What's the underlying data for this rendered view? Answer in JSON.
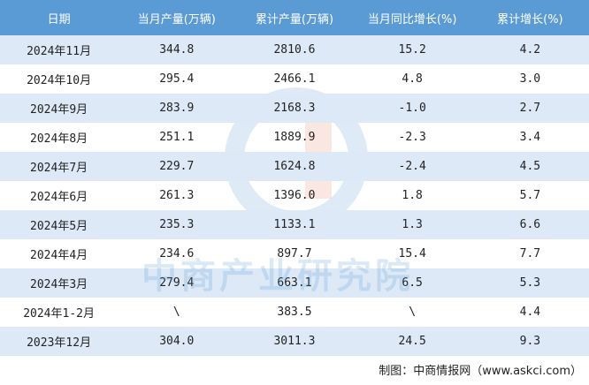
{
  "table": {
    "header": [
      "日期",
      "当月产量(万辆)",
      "累计产量(万辆)",
      "当月同比增长(%)",
      "累计增长(%)"
    ],
    "rows": [
      [
        "2024年11月",
        "344.8",
        "2810.6",
        "15.2",
        "4.2"
      ],
      [
        "2024年10月",
        "295.4",
        "2466.1",
        "4.8",
        "3.0"
      ],
      [
        "2024年9月",
        "283.9",
        "2168.3",
        "-1.0",
        "2.7"
      ],
      [
        "2024年8月",
        "251.1",
        "1889.9",
        "-2.3",
        "3.4"
      ],
      [
        "2024年7月",
        "229.7",
        "1624.8",
        "-2.4",
        "4.5"
      ],
      [
        "2024年6月",
        "261.3",
        "1396.0",
        "1.8",
        "5.7"
      ],
      [
        "2024年5月",
        "235.3",
        "1133.1",
        "1.3",
        "6.6"
      ],
      [
        "2024年4月",
        "234.6",
        "897.7",
        "15.4",
        "7.7"
      ],
      [
        "2024年3月",
        "279.4",
        "663.1",
        "6.5",
        "5.3"
      ],
      [
        "2024年1-2月",
        "\\",
        "383.5",
        "\\",
        "4.4"
      ],
      [
        "2023年12月",
        "304.0",
        "3011.3",
        "24.5",
        "9.3"
      ]
    ]
  },
  "watermark": "中商产业研究院",
  "source": "制图：中商情报网（www.askci.com）"
}
